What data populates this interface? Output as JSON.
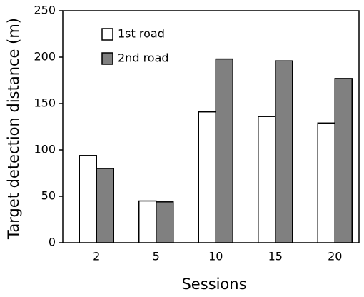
{
  "chart_data": {
    "type": "bar",
    "x_label": "Sessions",
    "y_label": "Target detection distance (m)",
    "categories": [
      "2",
      "5",
      "10",
      "15",
      "20"
    ],
    "series": [
      {
        "name": "1st road",
        "color": "#ffffff",
        "values": [
          94,
          45,
          141,
          136,
          129
        ]
      },
      {
        "name": "2nd road",
        "color": "#808080",
        "values": [
          80,
          44,
          198,
          196,
          177
        ]
      }
    ],
    "ylim": [
      0,
      250
    ],
    "yticks": [
      0,
      50,
      100,
      150,
      200,
      250
    ],
    "grid": false,
    "legend": "upper left"
  }
}
